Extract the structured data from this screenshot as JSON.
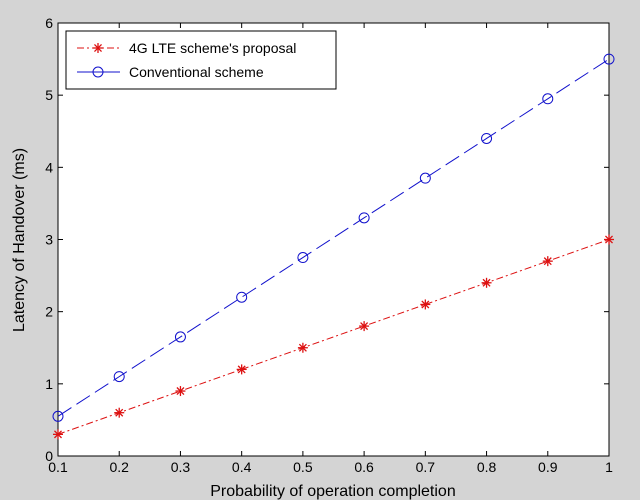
{
  "chart_data": {
    "type": "line",
    "title": "",
    "xlabel": "Probability of operation completion",
    "ylabel": "Latency of Handover (ms)",
    "xlim": [
      0.1,
      1
    ],
    "ylim": [
      0,
      6
    ],
    "x": [
      0.1,
      0.2,
      0.3,
      0.4,
      0.5,
      0.6,
      0.7,
      0.8,
      0.9,
      1.0
    ],
    "x_ticks": [
      "0.1",
      "0.2",
      "0.3",
      "0.4",
      "0.5",
      "0.6",
      "0.7",
      "0.8",
      "0.9",
      "1"
    ],
    "y_ticks": [
      "0",
      "1",
      "2",
      "3",
      "4",
      "5",
      "6"
    ],
    "grid": false,
    "legend_position": "top-left",
    "series": [
      {
        "name": "4G LTE scheme's proposal",
        "color": "#dd1111",
        "marker": "star",
        "line_style": "dash-dot",
        "values": [
          0.3,
          0.6,
          0.9,
          1.2,
          1.5,
          1.8,
          2.1,
          2.4,
          2.7,
          3.0
        ]
      },
      {
        "name": "Conventional scheme",
        "color": "#1111cc",
        "marker": "circle",
        "line_style": "long-dash",
        "values": [
          0.55,
          1.1,
          1.65,
          2.2,
          2.75,
          3.3,
          3.85,
          4.4,
          4.95,
          5.5
        ]
      }
    ]
  }
}
